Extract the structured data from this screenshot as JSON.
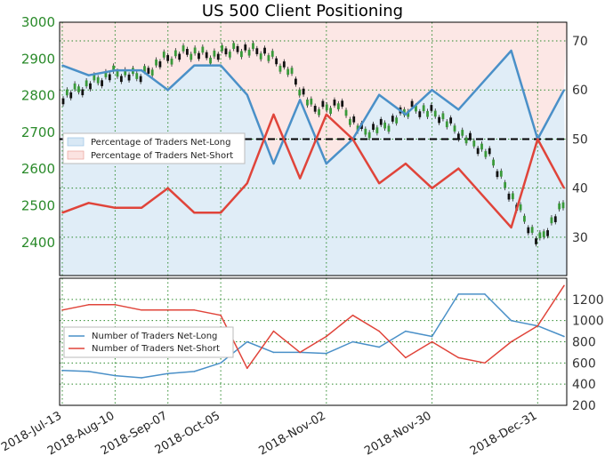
{
  "title": "US 500 Client Positioning",
  "colors": {
    "long_line": "#4a90c8",
    "short_line": "#e0443a",
    "long_fill": "#d8e8f5",
    "short_fill": "#fbe3e1",
    "left_tick": "#2a8a2a",
    "grid": "#2e8b2e"
  },
  "chart_data": [
    {
      "type": "line",
      "name": "price-and-sentiment",
      "left_axis": {
        "ticks": [
          2400,
          2500,
          2600,
          2700,
          2800,
          2900,
          3000
        ],
        "range": [
          2310,
          3000
        ]
      },
      "right_axis": {
        "ticks": [
          30,
          40,
          50,
          60,
          70
        ],
        "range": [
          22.2,
          73.8
        ]
      },
      "reference_line": 50,
      "legend": {
        "position": "left",
        "entries": [
          "Percentage of Traders Net-Long",
          "Percentage of Traders Net-Short"
        ]
      },
      "series": [
        {
          "name": "Percentage of Traders Net-Long",
          "axis": "right",
          "x": [
            "2018-Jul-13",
            "2018-Jul-27",
            "2018-Aug-10",
            "2018-Aug-24",
            "2018-Sep-07",
            "2018-Sep-21",
            "2018-Oct-05",
            "2018-Oct-12",
            "2018-Oct-19",
            "2018-Oct-26",
            "2018-Nov-02",
            "2018-Nov-09",
            "2018-Nov-16",
            "2018-Nov-23",
            "2018-Nov-30",
            "2018-Dec-07",
            "2018-Dec-14",
            "2018-Dec-21",
            "2018-Dec-31",
            "2019-Jan-07"
          ],
          "values": [
            65,
            63,
            64,
            64,
            60,
            65,
            65,
            59,
            45,
            58,
            45,
            50,
            59,
            55,
            60,
            56,
            62,
            68,
            50,
            60
          ]
        },
        {
          "name": "Percentage of Traders Net-Short",
          "axis": "right",
          "x": [
            "2018-Jul-13",
            "2018-Jul-27",
            "2018-Aug-10",
            "2018-Aug-24",
            "2018-Sep-07",
            "2018-Sep-21",
            "2018-Oct-05",
            "2018-Oct-12",
            "2018-Oct-19",
            "2018-Oct-26",
            "2018-Nov-02",
            "2018-Nov-09",
            "2018-Nov-16",
            "2018-Nov-23",
            "2018-Nov-30",
            "2018-Dec-07",
            "2018-Dec-14",
            "2018-Dec-21",
            "2018-Dec-31",
            "2019-Jan-07"
          ],
          "values": [
            35,
            37,
            36,
            36,
            40,
            35,
            35,
            41,
            55,
            42,
            55,
            50,
            41,
            45,
            40,
            44,
            38,
            32,
            50,
            40
          ]
        }
      ]
    },
    {
      "type": "line",
      "name": "trader-counts",
      "x_ticks": [
        "2018-Jul-13",
        "2018-Aug-10",
        "2018-Sep-07",
        "2018-Oct-05",
        "2018-Nov-02",
        "2018-Nov-30",
        "2018-Dec-31"
      ],
      "right_axis": {
        "ticks": [
          200,
          400,
          600,
          800,
          1000,
          1200
        ],
        "range": [
          200,
          1400
        ]
      },
      "legend": {
        "position": "left",
        "entries": [
          "Number of Traders Net-Long",
          "Number of Traders Net-Short"
        ]
      },
      "series": [
        {
          "name": "Number of Traders Net-Long",
          "x": [
            "2018-Jul-13",
            "2018-Jul-27",
            "2018-Aug-10",
            "2018-Aug-24",
            "2018-Sep-07",
            "2018-Sep-21",
            "2018-Oct-05",
            "2018-Oct-12",
            "2018-Oct-19",
            "2018-Oct-26",
            "2018-Nov-02",
            "2018-Nov-09",
            "2018-Nov-16",
            "2018-Nov-23",
            "2018-Nov-30",
            "2018-Dec-07",
            "2018-Dec-14",
            "2018-Dec-21",
            "2018-Dec-31",
            "2019-Jan-07"
          ],
          "values": [
            530,
            520,
            480,
            460,
            500,
            520,
            600,
            800,
            700,
            700,
            690,
            800,
            750,
            900,
            850,
            1250,
            1250,
            1000,
            950,
            850
          ]
        },
        {
          "name": "Number of Traders Net-Short",
          "x": [
            "2018-Jul-13",
            "2018-Jul-27",
            "2018-Aug-10",
            "2018-Aug-24",
            "2018-Sep-07",
            "2018-Sep-21",
            "2018-Oct-05",
            "2018-Oct-12",
            "2018-Oct-19",
            "2018-Oct-26",
            "2018-Nov-02",
            "2018-Nov-09",
            "2018-Nov-16",
            "2018-Nov-23",
            "2018-Nov-30",
            "2018-Dec-07",
            "2018-Dec-14",
            "2018-Dec-21",
            "2018-Dec-31",
            "2019-Jan-07"
          ],
          "values": [
            1100,
            1150,
            1150,
            1100,
            1100,
            1100,
            1050,
            550,
            900,
            700,
            850,
            1050,
            900,
            650,
            800,
            650,
            600,
            800,
            950,
            1330
          ]
        }
      ]
    }
  ]
}
